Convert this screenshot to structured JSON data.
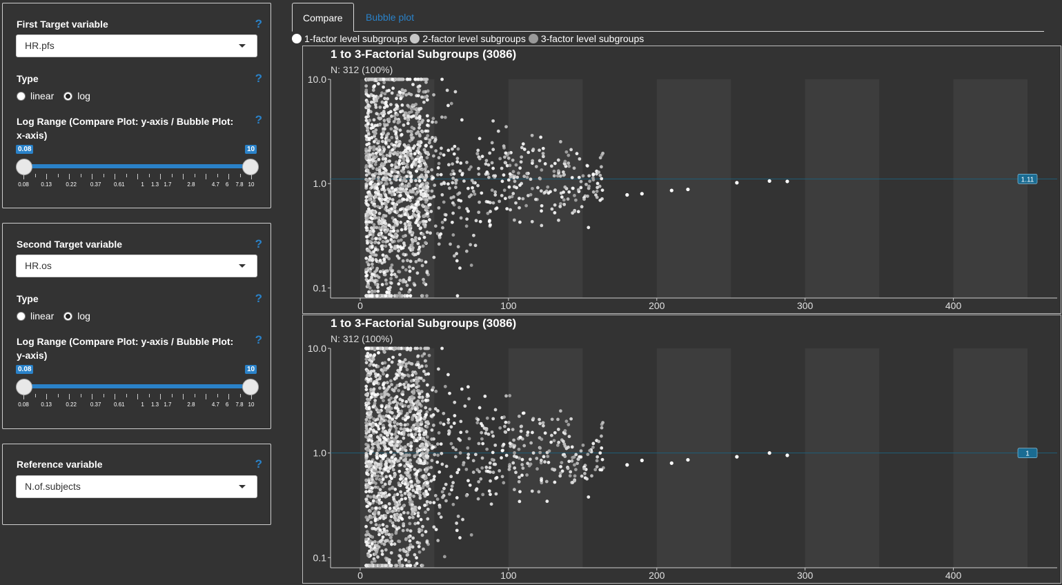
{
  "sidebar": {
    "first": {
      "label": "First Target variable",
      "help": "?",
      "select_value": "HR.pfs",
      "type_label": "Type",
      "type_help": "?",
      "radio_linear": "linear",
      "radio_log": "log",
      "selected_type": "log",
      "range_label_line1": "Log Range (Compare Plot: y-axis / Bubble Plot:",
      "range_label_line2": "x-axis)",
      "range_help": "?",
      "range_min": "0.08",
      "range_max": "10"
    },
    "second": {
      "label": "Second Target variable",
      "help": "?",
      "select_value": "HR.os",
      "type_label": "Type",
      "type_help": "?",
      "radio_linear": "linear",
      "radio_log": "log",
      "selected_type": "log",
      "range_label_line1": "Log Range (Compare Plot: y-axis / Bubble Plot:",
      "range_label_line2": "y-axis)",
      "range_help": "?",
      "range_min": "0.08",
      "range_max": "10"
    },
    "reference": {
      "label": "Reference variable",
      "help": "?",
      "select_value": "N.of.subjects"
    },
    "slider_tick_labels": [
      "0.08",
      "0.13",
      "0.22",
      "0.37",
      "0.61",
      "1",
      "1.3",
      "1.7",
      "2.8",
      "4.7",
      "6",
      "7.8",
      "10"
    ]
  },
  "tabs": [
    {
      "label": "Compare",
      "active": true
    },
    {
      "label": "Bubble plot",
      "active": false
    }
  ],
  "legend": [
    {
      "label": "1-factor level subgroups",
      "color": "#ffffff"
    },
    {
      "label": "2-factor level subgroups",
      "color": "#c7c7c7"
    },
    {
      "label": "3-factor level subgroups",
      "color": "#9a9a9a"
    }
  ],
  "colors": {
    "accent": "#2a82c9",
    "background": "#333333",
    "band": "#3d3d3d",
    "refline": "#1f5f7a"
  },
  "chart_data": [
    {
      "type": "scatter",
      "title": "1 to 3-Factorial Subgroups (3086)",
      "subtitle": "N: 312 (100%)",
      "xlim": [
        -20,
        470
      ],
      "x_ticks": [
        0,
        100,
        200,
        300,
        400
      ],
      "y_scale": "log",
      "ylim": [
        0.08,
        10
      ],
      "y_ticks": [
        "0.1",
        "1.0",
        "10.0"
      ],
      "y_tick_values": [
        0.1,
        1,
        10
      ],
      "reference_line": 1.11,
      "reference_label": "1.11",
      "bands": [
        [
          0,
          50
        ],
        [
          100,
          150
        ],
        [
          200,
          250
        ],
        [
          300,
          350
        ],
        [
          400,
          450
        ]
      ],
      "highlighted_points": [
        {
          "x": 180,
          "y": 0.78
        },
        {
          "x": 190,
          "y": 0.8
        },
        {
          "x": 210,
          "y": 0.86
        },
        {
          "x": 221,
          "y": 0.88
        },
        {
          "x": 254,
          "y": 1.02
        },
        {
          "x": 276,
          "y": 1.06
        },
        {
          "x": 288,
          "y": 1.05
        }
      ]
    },
    {
      "type": "scatter",
      "title": "1 to 3-Factorial Subgroups (3086)",
      "subtitle": "N: 312 (100%)",
      "xlim": [
        -20,
        470
      ],
      "x_ticks": [
        0,
        100,
        200,
        300,
        400
      ],
      "y_scale": "log",
      "ylim": [
        0.08,
        10
      ],
      "y_ticks": [
        "0.1",
        "1.0",
        "10.0"
      ],
      "y_tick_values": [
        0.1,
        1,
        10
      ],
      "reference_line": 1.0,
      "reference_label": "1",
      "bands": [
        [
          0,
          50
        ],
        [
          100,
          150
        ],
        [
          200,
          250
        ],
        [
          300,
          350
        ],
        [
          400,
          450
        ]
      ],
      "highlighted_points": [
        {
          "x": 180,
          "y": 0.77
        },
        {
          "x": 190,
          "y": 0.85
        },
        {
          "x": 210,
          "y": 0.8
        },
        {
          "x": 221,
          "y": 0.86
        },
        {
          "x": 254,
          "y": 0.92
        },
        {
          "x": 276,
          "y": 1.0
        },
        {
          "x": 288,
          "y": 0.95
        }
      ]
    }
  ]
}
